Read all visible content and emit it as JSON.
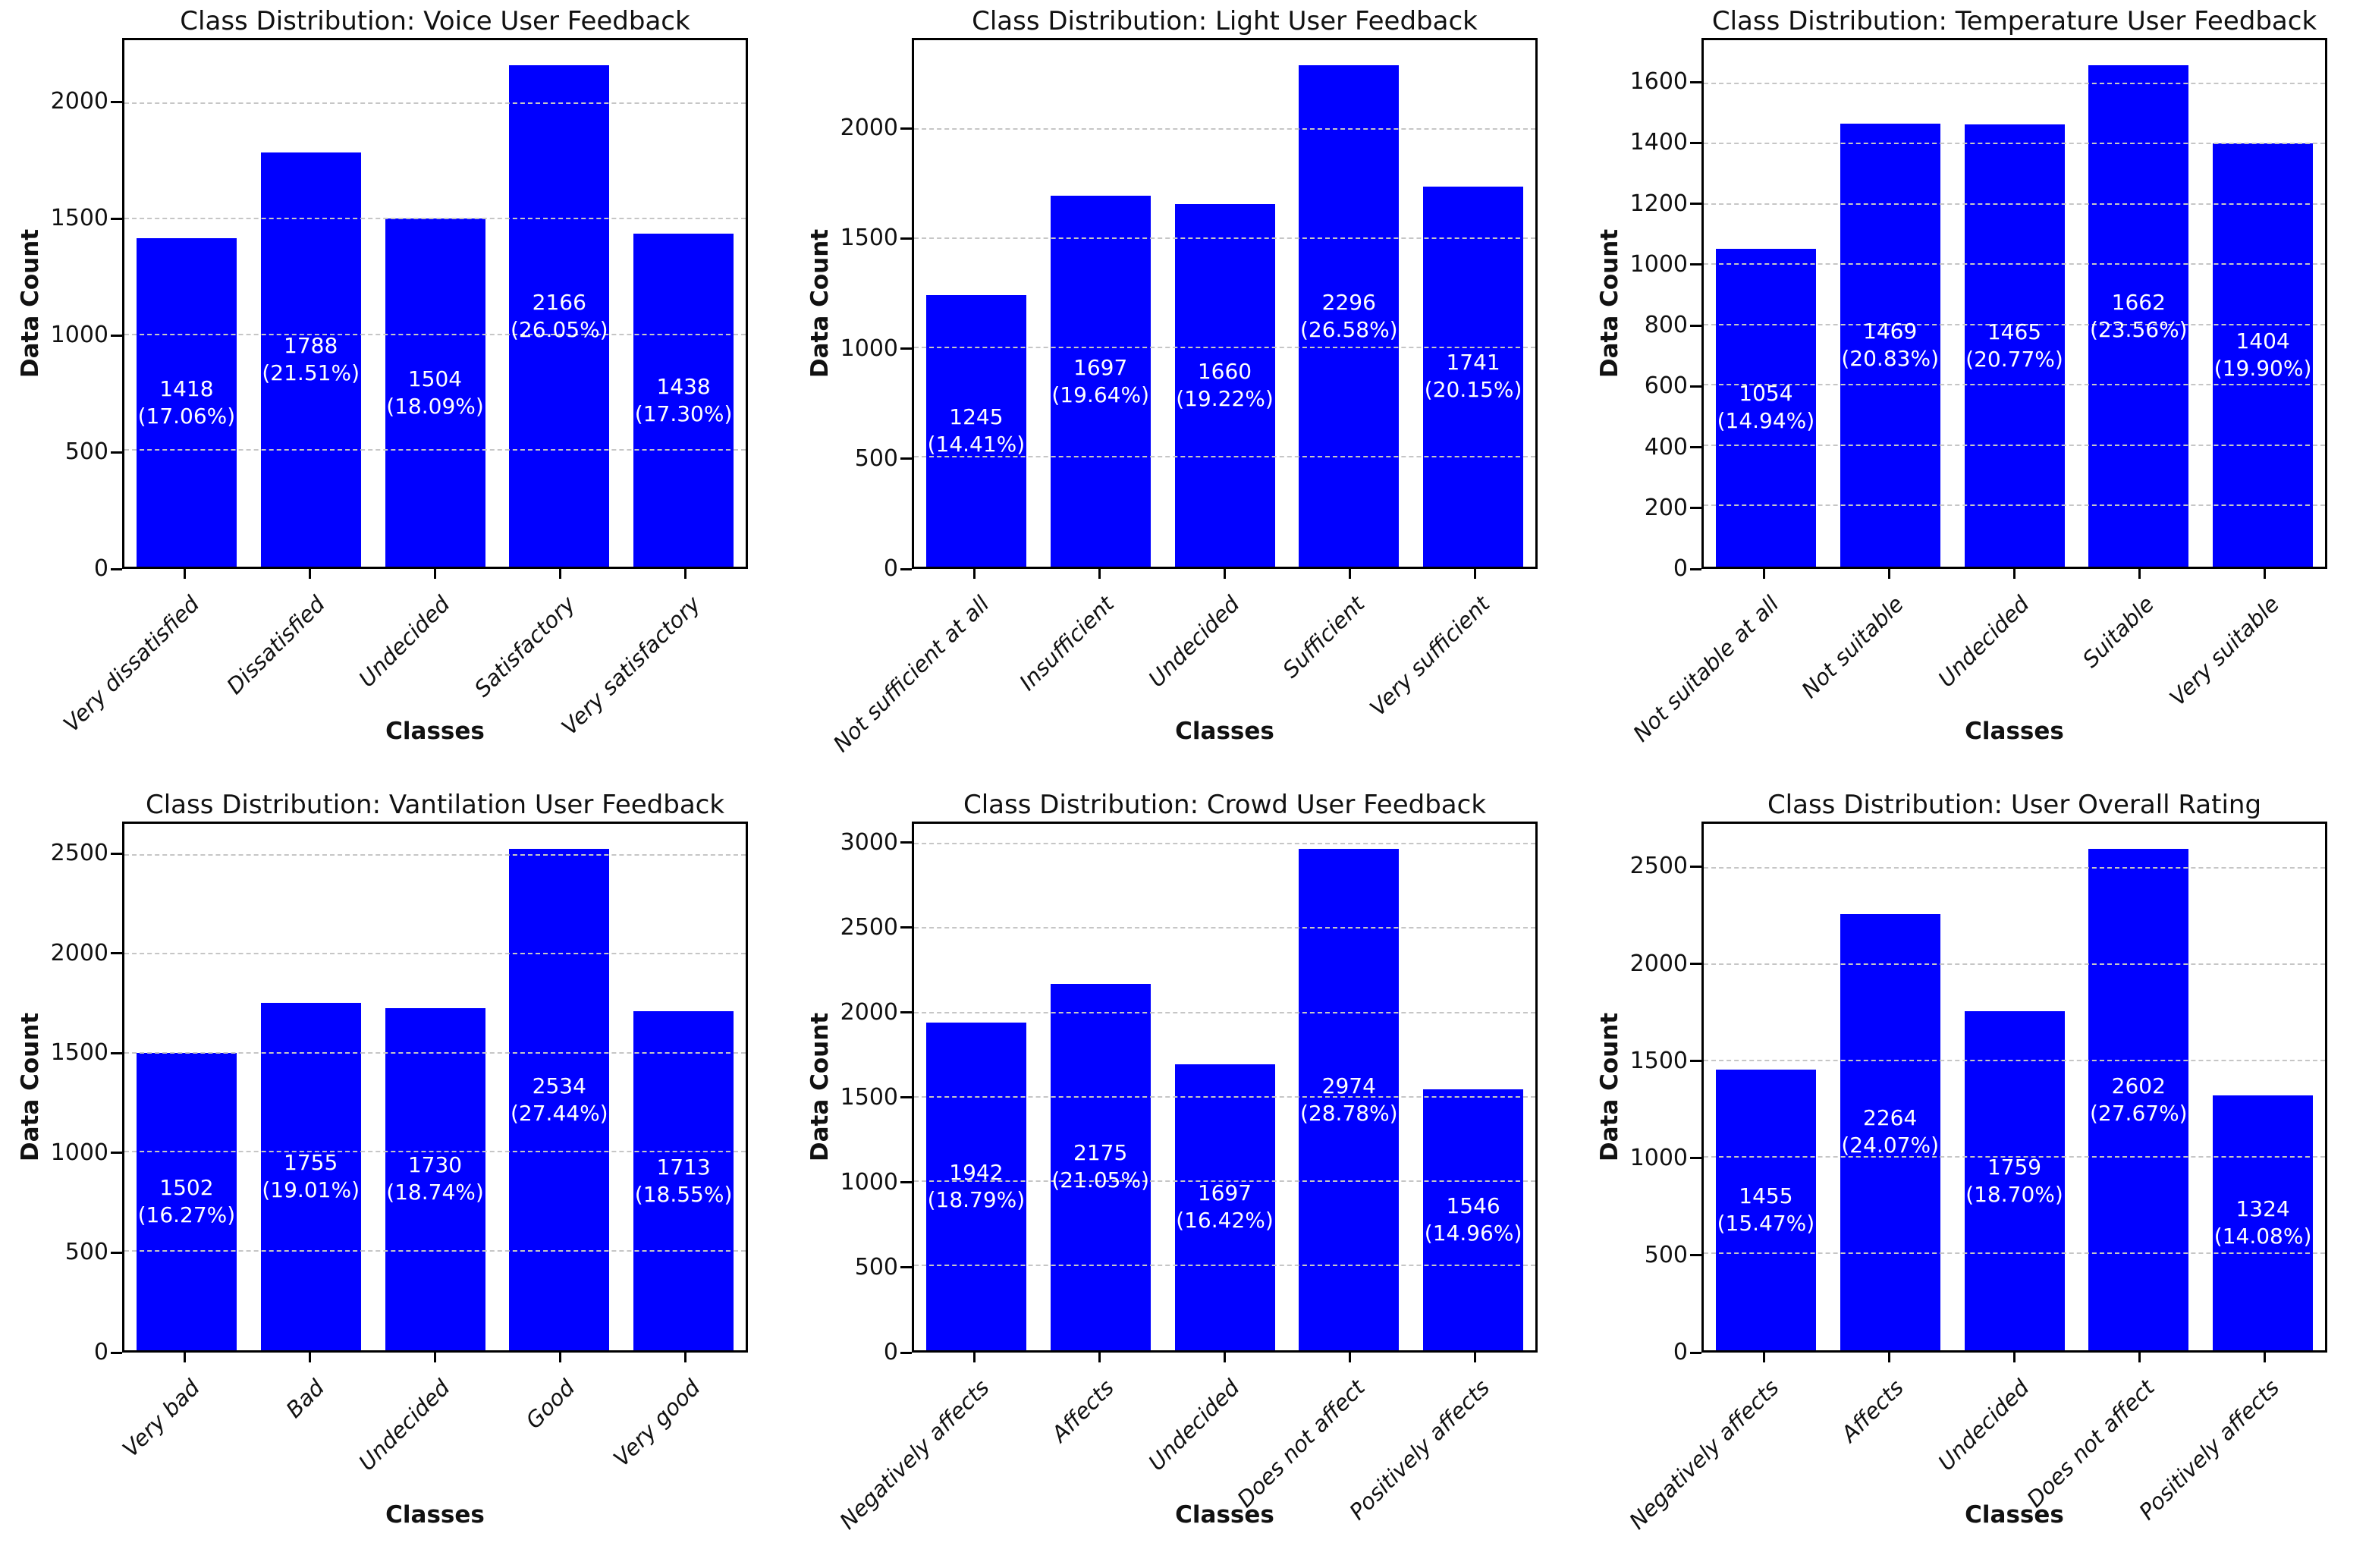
{
  "figure": {
    "layout": "2x3-grid-of-subplots",
    "background_color": "#ffffff",
    "bar_color": "#0000ff",
    "bar_label_text_color": "#ffffff",
    "grid_color": "#c6c6c6",
    "grid_style": "dashed-horizontal-above-bars",
    "spine_color": "#000000"
  },
  "chart_data": [
    {
      "type": "bar",
      "title": "Class Distribution: Voice User Feedback",
      "xlabel": "Classes",
      "ylabel": "Data Count",
      "categories": [
        "Very dissatisfied",
        "Dissatisfied",
        "Undecided",
        "Satisfactory",
        "Very satisfactory"
      ],
      "values": [
        1418,
        1788,
        1504,
        2166,
        1438
      ],
      "percents": [
        "17.06%",
        "21.51%",
        "18.09%",
        "26.05%",
        "17.30%"
      ],
      "yticks": [
        0,
        500,
        1000,
        1500,
        2000
      ],
      "ylim": [
        0,
        2274.3
      ],
      "grid": true,
      "legend": false
    },
    {
      "type": "bar",
      "title": "Class Distribution: Light User Feedback",
      "xlabel": "Classes",
      "ylabel": "Data Count",
      "categories": [
        "Not sufficient at all",
        "Insufficient",
        "Undecided",
        "Sufficient",
        "Very sufficient"
      ],
      "values": [
        1245,
        1697,
        1660,
        2296,
        1741
      ],
      "percents": [
        "14.41%",
        "19.64%",
        "19.22%",
        "26.58%",
        "20.15%"
      ],
      "yticks": [
        0,
        500,
        1000,
        1500,
        2000
      ],
      "ylim": [
        0,
        2410.8
      ],
      "grid": true,
      "legend": false
    },
    {
      "type": "bar",
      "title": "Class Distribution: Temperature User Feedback",
      "xlabel": "Classes",
      "ylabel": "Data Count",
      "categories": [
        "Not suitable at all",
        "Not suitable",
        "Undecided",
        "Suitable",
        "Very suitable"
      ],
      "values": [
        1054,
        1469,
        1465,
        1662,
        1404
      ],
      "percents": [
        "14.94%",
        "20.83%",
        "20.77%",
        "23.56%",
        "19.90%"
      ],
      "yticks": [
        0,
        200,
        400,
        600,
        800,
        1000,
        1200,
        1400,
        1600
      ],
      "ylim": [
        0,
        1745.1
      ],
      "grid": true,
      "legend": false
    },
    {
      "type": "bar",
      "title": "Class Distribution: Vantilation User Feedback",
      "xlabel": "Classes",
      "ylabel": "Data Count",
      "categories": [
        "Very bad",
        "Bad",
        "Undecided",
        "Good",
        "Very good"
      ],
      "values": [
        1502,
        1755,
        1730,
        2534,
        1713
      ],
      "percents": [
        "16.27%",
        "19.01%",
        "18.74%",
        "27.44%",
        "18.55%"
      ],
      "yticks": [
        0,
        500,
        1000,
        1500,
        2000,
        2500
      ],
      "ylim": [
        0,
        2660.7
      ],
      "grid": true,
      "legend": false
    },
    {
      "type": "bar",
      "title": "Class Distribution: Crowd User Feedback",
      "xlabel": "Classes",
      "ylabel": "Data Count",
      "categories": [
        "Negatively affects",
        "Affects",
        "Undecided",
        "Does not affect",
        "Positively affects"
      ],
      "values": [
        1942,
        2175,
        1697,
        2974,
        1546
      ],
      "percents": [
        "18.79%",
        "21.05%",
        "16.42%",
        "28.78%",
        "14.96%"
      ],
      "yticks": [
        0,
        500,
        1000,
        1500,
        2000,
        2500,
        3000
      ],
      "ylim": [
        0,
        3122.7
      ],
      "grid": true,
      "legend": false
    },
    {
      "type": "bar",
      "title": "Class Distribution: User Overall Rating",
      "xlabel": "Classes",
      "ylabel": "Data Count",
      "categories": [
        "Negatively affects",
        "Affects",
        "Undecided",
        "Does not affect",
        "Positively affects"
      ],
      "values": [
        1455,
        2264,
        1759,
        2602,
        1324
      ],
      "percents": [
        "15.47%",
        "24.07%",
        "18.70%",
        "27.67%",
        "14.08%"
      ],
      "yticks": [
        0,
        500,
        1000,
        1500,
        2000,
        2500
      ],
      "ylim": [
        0,
        2732.1
      ],
      "grid": true,
      "legend": false
    }
  ]
}
